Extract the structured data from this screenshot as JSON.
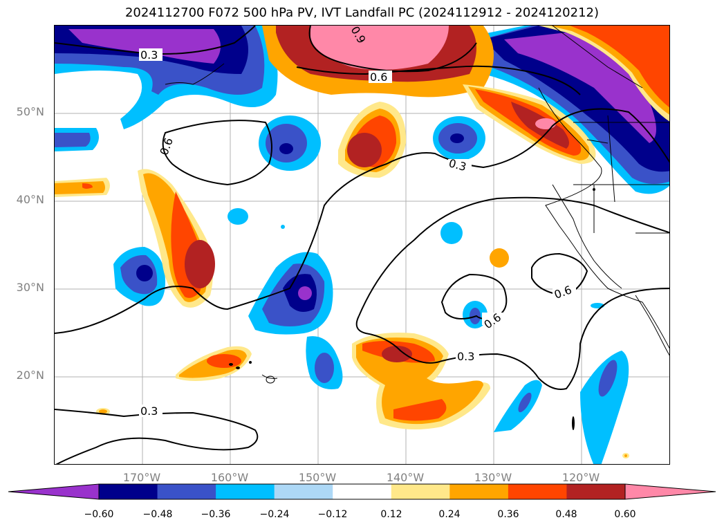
{
  "title": "2024112700 F072 500 hPa PV, IVT Landfall PC (2024112912 - 2024120212)",
  "lat_labels": [
    "50°N",
    "40°N",
    "30°N",
    "20°N"
  ],
  "lon_labels": [
    "170°W",
    "160°W",
    "150°W",
    "140°W",
    "130°W",
    "120°W"
  ],
  "colorbar": {
    "ticks": [
      "−0.60",
      "−0.48",
      "−0.36",
      "−0.24",
      "−0.12",
      "0.12",
      "0.24",
      "0.36",
      "0.48",
      "0.60"
    ],
    "colors": [
      "#9932cc",
      "#00008b",
      "#3a52c8",
      "#00bfff",
      "#add8f6",
      "#ffffff",
      "#ffe88a",
      "#ffa500",
      "#ff4500",
      "#b22222",
      "#ff88a8"
    ]
  },
  "contour_labels": [
    "0.3",
    "0.9",
    "0.6",
    "0.6",
    "0.3",
    "0.6",
    "0.6",
    "0.3",
    "0.3"
  ]
}
